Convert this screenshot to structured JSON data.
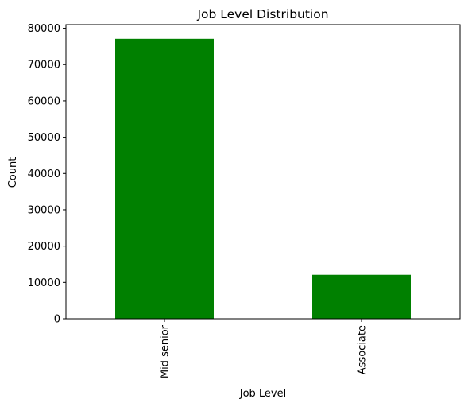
{
  "chart_data": {
    "type": "bar",
    "title": "Job Level Distribution",
    "xlabel": "Job Level",
    "ylabel": "Count",
    "categories": [
      "Mid senior",
      "Associate"
    ],
    "values": [
      77100,
      12100
    ],
    "ylim": [
      0,
      81000
    ],
    "yticks": [
      0,
      10000,
      20000,
      30000,
      40000,
      50000,
      60000,
      70000,
      80000
    ],
    "grid": false,
    "legend": "none",
    "bar_color": "#008000"
  }
}
